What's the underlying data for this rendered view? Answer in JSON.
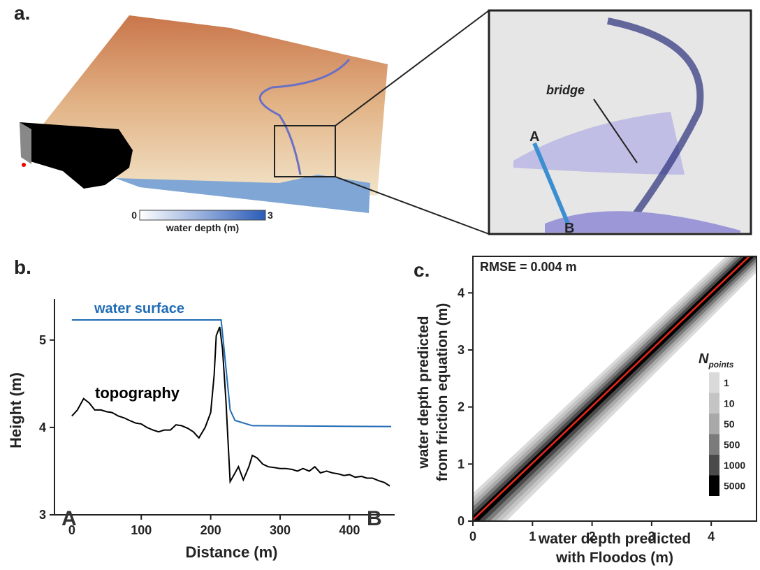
{
  "panel_a": {
    "label": "a.",
    "colorbar": {
      "ticks": [
        0,
        3
      ],
      "label": "water depth (m)",
      "colors": [
        "#ffffff",
        "#2a5cb8"
      ]
    },
    "annotation": "bridge",
    "point_a": "A",
    "point_b": "B"
  },
  "chart_data": [
    {
      "type": "line",
      "panel": "b.",
      "xlabel": "Distance (m)",
      "ylabel": "Height (m)",
      "xlim": [
        -25,
        465
      ],
      "ylim": [
        3,
        5.47
      ],
      "xticks": [
        0,
        100,
        200,
        300,
        400
      ],
      "yticks": [
        3,
        4,
        5
      ],
      "annotations": [
        "water surface",
        "topography",
        "A",
        "B"
      ],
      "series": [
        {
          "name": "water surface",
          "color": "#1f6bb5",
          "x": [
            0,
            215,
            218,
            228,
            235,
            260,
            460
          ],
          "values": [
            5.23,
            5.23,
            5.0,
            4.2,
            4.08,
            4.02,
            4.01
          ]
        },
        {
          "name": "topography",
          "color": "#000000",
          "x": [
            0,
            8,
            17,
            25,
            33,
            42,
            50,
            58,
            67,
            75,
            83,
            92,
            100,
            108,
            117,
            125,
            133,
            142,
            150,
            158,
            167,
            175,
            183,
            192,
            200,
            205,
            208,
            213,
            217,
            222,
            228,
            233,
            240,
            247,
            255,
            260,
            267,
            275,
            283,
            292,
            300,
            308,
            317,
            325,
            333,
            342,
            350,
            358,
            367,
            375,
            383,
            392,
            400,
            408,
            417,
            425,
            433,
            442,
            450,
            458
          ],
          "values": [
            4.13,
            4.2,
            4.33,
            4.28,
            4.2,
            4.2,
            4.18,
            4.17,
            4.13,
            4.11,
            4.08,
            4.05,
            4.04,
            4.0,
            3.97,
            3.95,
            3.97,
            3.97,
            4.03,
            4.02,
            3.99,
            3.95,
            3.88,
            4.0,
            4.17,
            4.6,
            5.05,
            5.15,
            4.9,
            4.3,
            3.38,
            3.45,
            3.55,
            3.4,
            3.55,
            3.68,
            3.65,
            3.58,
            3.55,
            3.54,
            3.53,
            3.53,
            3.52,
            3.5,
            3.53,
            3.5,
            3.55,
            3.48,
            3.5,
            3.48,
            3.47,
            3.45,
            3.46,
            3.43,
            3.44,
            3.42,
            3.42,
            3.39,
            3.37,
            3.33
          ]
        }
      ]
    },
    {
      "type": "density",
      "panel": "c.",
      "xlabel": [
        "water depth predicted",
        "with Floodos (m)"
      ],
      "ylabel": [
        "water depth predicted",
        "from friction equation (m)"
      ],
      "xlim": [
        0,
        4.76
      ],
      "ylim": [
        0,
        4.64
      ],
      "xticks": [
        0,
        1,
        2,
        3,
        4
      ],
      "yticks": [
        0,
        1,
        2,
        3,
        4
      ],
      "annotation": "RMSE = 0.004 m",
      "legend_title": "N",
      "legend_title_sub": "points",
      "legend": [
        {
          "label": "1",
          "color": "#dadada"
        },
        {
          "label": "10",
          "color": "#c4c4c4"
        },
        {
          "label": "50",
          "color": "#a9a9a9"
        },
        {
          "label": "500",
          "color": "#7b7b7b"
        },
        {
          "label": "1000",
          "color": "#4a4a4a"
        },
        {
          "label": "5000",
          "color": "#000000"
        }
      ],
      "fit": {
        "color": "#e8291c",
        "x": [
          0,
          4.76
        ],
        "values": [
          0.02,
          4.76
        ]
      }
    }
  ]
}
